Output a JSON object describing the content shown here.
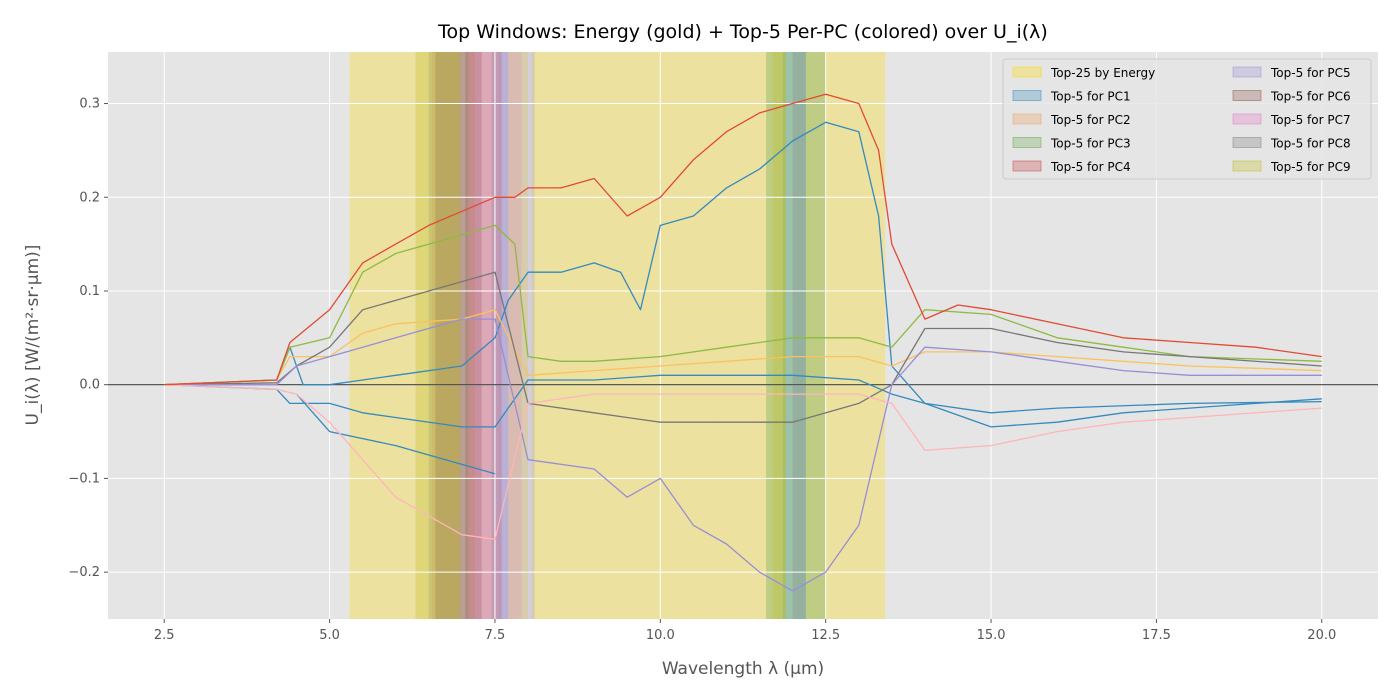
{
  "chart_data": {
    "type": "line",
    "title": "Top Windows: Energy (gold) + Top-5 Per-PC (colored) over U_i(λ)",
    "xlabel": "Wavelength λ (µm)",
    "ylabel": "U_i(λ) [W/(m²·sr·µm)]",
    "xlim": [
      1.65,
      20.85
    ],
    "ylim": [
      -0.25,
      0.355
    ],
    "xticks": [
      2.5,
      5.0,
      7.5,
      10.0,
      12.5,
      15.0,
      17.5,
      20.0
    ],
    "xtick_labels": [
      "2.5",
      "5.0",
      "7.5",
      "10.0",
      "12.5",
      "15.0",
      "17.5",
      "20.0"
    ],
    "yticks": [
      -0.2,
      -0.1,
      0.0,
      0.1,
      0.2,
      0.3
    ],
    "ytick_labels": [
      "−0.2",
      "−0.1",
      "0.0",
      "0.1",
      "0.2",
      "0.3"
    ],
    "grid": true,
    "legend_position": "top-right",
    "zero_line": 0,
    "legend": [
      {
        "label": "Top-25 by Energy",
        "color": "#ffd700"
      },
      {
        "label": "Top-5 for PC1",
        "color": "#348abd"
      },
      {
        "label": "Top-5 for PC2",
        "color": "#e8a060"
      },
      {
        "label": "Top-5 for PC3",
        "color": "#6aa84f"
      },
      {
        "label": "Top-5 for PC4",
        "color": "#c8424a"
      },
      {
        "label": "Top-5 for PC5",
        "color": "#988ed5"
      },
      {
        "label": "Top-5 for PC6",
        "color": "#8c564b"
      },
      {
        "label": "Top-5 for PC7",
        "color": "#e377c2"
      },
      {
        "label": "Top-5 for PC8",
        "color": "#7f7f7f"
      },
      {
        "label": "Top-5 for PC9",
        "color": "#bcbd22"
      }
    ],
    "windows": [
      {
        "group": "Top-25 by Energy",
        "color": "#ffd700",
        "opacity": 0.3,
        "ranges": [
          [
            5.3,
            5.6
          ],
          [
            5.6,
            5.9
          ],
          [
            5.9,
            6.15
          ],
          [
            6.15,
            6.4
          ],
          [
            6.4,
            6.55
          ],
          [
            6.55,
            6.75
          ],
          [
            6.75,
            7.0
          ],
          [
            7.7,
            8.0
          ],
          [
            8.05,
            8.3
          ],
          [
            8.3,
            8.5
          ],
          [
            8.5,
            8.75
          ],
          [
            8.75,
            9.0
          ],
          [
            9.0,
            9.25
          ],
          [
            9.25,
            9.5
          ],
          [
            9.5,
            9.75
          ],
          [
            9.75,
            10.0
          ],
          [
            10.0,
            10.3
          ],
          [
            10.3,
            10.6
          ],
          [
            10.6,
            10.9
          ],
          [
            10.9,
            11.2
          ],
          [
            11.2,
            11.5
          ],
          [
            11.5,
            11.9
          ],
          [
            12.2,
            12.6
          ],
          [
            12.6,
            13.1
          ],
          [
            13.1,
            13.4
          ]
        ]
      },
      {
        "group": "Top-5 for PC1",
        "color": "#348abd",
        "opacity": 0.25,
        "ranges": [
          [
            7.45,
            7.6
          ],
          [
            7.6,
            7.7
          ],
          [
            11.85,
            12.0
          ],
          [
            12.0,
            12.1
          ],
          [
            12.1,
            12.2
          ]
        ]
      },
      {
        "group": "Top-5 for PC2",
        "color": "#e8a060",
        "opacity": 0.25,
        "ranges": [
          [
            6.55,
            6.7
          ],
          [
            6.7,
            6.85
          ],
          [
            6.85,
            7.0
          ],
          [
            7.0,
            7.1
          ],
          [
            7.1,
            7.2
          ]
        ]
      },
      {
        "group": "Top-5 for PC3",
        "color": "#6aa84f",
        "opacity": 0.35,
        "ranges": [
          [
            11.6,
            11.85
          ],
          [
            11.85,
            12.0
          ],
          [
            12.0,
            12.15
          ],
          [
            12.15,
            12.3
          ],
          [
            12.3,
            12.5
          ]
        ]
      },
      {
        "group": "Top-5 for PC4",
        "color": "#c8424a",
        "opacity": 0.3,
        "ranges": [
          [
            7.05,
            7.2
          ],
          [
            7.2,
            7.3
          ],
          [
            7.3,
            7.4
          ],
          [
            7.4,
            7.5
          ],
          [
            7.5,
            7.6
          ]
        ]
      },
      {
        "group": "Top-5 for PC5",
        "color": "#988ed5",
        "opacity": 0.25,
        "ranges": [
          [
            7.55,
            7.7
          ],
          [
            7.7,
            7.8
          ],
          [
            7.8,
            7.9
          ],
          [
            7.9,
            8.0
          ],
          [
            8.0,
            8.1
          ]
        ]
      },
      {
        "group": "Top-5 for PC6",
        "color": "#8c564b",
        "opacity": 0.3,
        "ranges": [
          [
            6.6,
            6.75
          ],
          [
            6.75,
            6.9
          ],
          [
            6.9,
            7.05
          ],
          [
            7.05,
            7.15
          ],
          [
            7.15,
            7.3
          ]
        ]
      },
      {
        "group": "Top-5 for PC7",
        "color": "#e377c2",
        "opacity": 0.2,
        "ranges": [
          [
            7.15,
            7.3
          ],
          [
            7.3,
            7.45
          ],
          [
            7.45,
            7.6
          ],
          [
            7.6,
            7.75
          ],
          [
            7.75,
            7.9
          ]
        ]
      },
      {
        "group": "Top-5 for PC8",
        "color": "#7f7f7f",
        "opacity": 0.25,
        "ranges": [
          [
            6.5,
            6.7
          ],
          [
            6.7,
            6.85
          ],
          [
            6.85,
            7.0
          ],
          [
            7.0,
            7.1
          ],
          [
            12.0,
            12.2
          ]
        ]
      },
      {
        "group": "Top-5 for PC9",
        "color": "#bcbd22",
        "opacity": 0.3,
        "ranges": [
          [
            6.3,
            6.5
          ],
          [
            6.5,
            6.65
          ],
          [
            6.65,
            6.8
          ],
          [
            6.8,
            6.95
          ],
          [
            11.7,
            11.9
          ]
        ]
      }
    ],
    "series": [
      {
        "color": "#348abd",
        "points": [
          [
            2.5,
            0.0
          ],
          [
            4.2,
            0.005
          ],
          [
            4.4,
            0.04
          ],
          [
            4.6,
            0.0
          ],
          [
            5.0,
            0.0
          ],
          [
            6.0,
            0.01
          ],
          [
            7.0,
            0.02
          ],
          [
            7.5,
            0.05
          ],
          [
            7.7,
            0.09
          ],
          [
            8.0,
            0.12
          ],
          [
            8.5,
            0.12
          ],
          [
            9.0,
            0.13
          ],
          [
            9.4,
            0.12
          ],
          [
            9.7,
            0.08
          ],
          [
            10.0,
            0.17
          ],
          [
            10.5,
            0.18
          ],
          [
            11.0,
            0.21
          ],
          [
            11.5,
            0.23
          ],
          [
            12.0,
            0.26
          ],
          [
            12.5,
            0.28
          ],
          [
            13.0,
            0.27
          ],
          [
            13.3,
            0.18
          ],
          [
            13.5,
            0.02
          ],
          [
            14.0,
            -0.02
          ],
          [
            15.0,
            -0.045
          ],
          [
            16.0,
            -0.04
          ],
          [
            17.0,
            -0.03
          ],
          [
            18.0,
            -0.025
          ],
          [
            19.0,
            -0.02
          ],
          [
            20.0,
            -0.015
          ]
        ]
      },
      {
        "color": "#348abd",
        "points": [
          [
            2.5,
            0.0
          ],
          [
            4.2,
            -0.005
          ],
          [
            4.4,
            -0.02
          ],
          [
            5.0,
            -0.02
          ],
          [
            5.5,
            -0.03
          ],
          [
            6.0,
            -0.035
          ],
          [
            7.0,
            -0.045
          ],
          [
            7.5,
            -0.045
          ],
          [
            8.0,
            0.005
          ],
          [
            9.0,
            0.005
          ],
          [
            10.0,
            0.01
          ],
          [
            11.0,
            0.01
          ],
          [
            12.0,
            0.01
          ],
          [
            13.0,
            0.005
          ],
          [
            13.5,
            -0.01
          ],
          [
            14.0,
            -0.02
          ],
          [
            15.0,
            -0.03
          ],
          [
            16.0,
            -0.025
          ],
          [
            18.0,
            -0.02
          ],
          [
            20.0,
            -0.018
          ]
        ]
      },
      {
        "color": "#348abd",
        "points": [
          [
            4.5,
            -0.01
          ],
          [
            5.0,
            -0.05
          ],
          [
            6.0,
            -0.065
          ],
          [
            7.0,
            -0.085
          ],
          [
            7.5,
            -0.095
          ]
        ]
      },
      {
        "color": "#fbc15e",
        "points": [
          [
            2.5,
            0.0
          ],
          [
            4.2,
            0.005
          ],
          [
            4.4,
            0.03
          ],
          [
            5.0,
            0.03
          ],
          [
            5.5,
            0.055
          ],
          [
            6.0,
            0.065
          ],
          [
            7.0,
            0.07
          ],
          [
            7.5,
            0.08
          ],
          [
            8.0,
            0.01
          ],
          [
            9.0,
            0.015
          ],
          [
            10.0,
            0.02
          ],
          [
            11.0,
            0.025
          ],
          [
            12.0,
            0.03
          ],
          [
            13.0,
            0.03
          ],
          [
            13.5,
            0.02
          ],
          [
            14.0,
            0.035
          ],
          [
            15.0,
            0.035
          ],
          [
            16.0,
            0.03
          ],
          [
            17.0,
            0.025
          ],
          [
            18.0,
            0.02
          ],
          [
            20.0,
            0.015
          ]
        ]
      },
      {
        "color": "#8eba42",
        "points": [
          [
            2.5,
            0.0
          ],
          [
            4.2,
            0.005
          ],
          [
            4.4,
            0.04
          ],
          [
            5.0,
            0.05
          ],
          [
            5.5,
            0.12
          ],
          [
            6.0,
            0.14
          ],
          [
            6.5,
            0.15
          ],
          [
            7.0,
            0.16
          ],
          [
            7.5,
            0.17
          ],
          [
            7.8,
            0.15
          ],
          [
            8.0,
            0.03
          ],
          [
            8.5,
            0.025
          ],
          [
            9.0,
            0.025
          ],
          [
            10.0,
            0.03
          ],
          [
            11.0,
            0.04
          ],
          [
            12.0,
            0.05
          ],
          [
            13.0,
            0.05
          ],
          [
            13.5,
            0.04
          ],
          [
            14.0,
            0.08
          ],
          [
            15.0,
            0.075
          ],
          [
            16.0,
            0.05
          ],
          [
            17.0,
            0.04
          ],
          [
            18.0,
            0.03
          ],
          [
            20.0,
            0.025
          ]
        ]
      },
      {
        "color": "#777777",
        "points": [
          [
            2.5,
            0.0
          ],
          [
            4.2,
            0.002
          ],
          [
            4.5,
            0.02
          ],
          [
            5.0,
            0.04
          ],
          [
            5.5,
            0.08
          ],
          [
            6.0,
            0.09
          ],
          [
            7.0,
            0.11
          ],
          [
            7.5,
            0.12
          ],
          [
            8.0,
            -0.02
          ],
          [
            9.0,
            -0.03
          ],
          [
            10.0,
            -0.04
          ],
          [
            11.0,
            -0.04
          ],
          [
            12.0,
            -0.04
          ],
          [
            13.0,
            -0.02
          ],
          [
            13.5,
            0.0
          ],
          [
            14.0,
            0.06
          ],
          [
            15.0,
            0.06
          ],
          [
            16.0,
            0.045
          ],
          [
            17.0,
            0.035
          ],
          [
            18.0,
            0.03
          ],
          [
            20.0,
            0.02
          ]
        ]
      },
      {
        "color": "#988ed5",
        "points": [
          [
            2.5,
            0.0
          ],
          [
            4.2,
            0.0
          ],
          [
            4.5,
            0.02
          ],
          [
            5.0,
            0.03
          ],
          [
            5.5,
            0.04
          ],
          [
            6.0,
            0.05
          ],
          [
            7.0,
            0.07
          ],
          [
            7.5,
            0.07
          ],
          [
            8.0,
            -0.08
          ],
          [
            9.0,
            -0.09
          ],
          [
            9.5,
            -0.12
          ],
          [
            10.0,
            -0.1
          ],
          [
            10.5,
            -0.15
          ],
          [
            11.0,
            -0.17
          ],
          [
            11.5,
            -0.2
          ],
          [
            12.0,
            -0.22
          ],
          [
            12.5,
            -0.2
          ],
          [
            13.0,
            -0.15
          ],
          [
            13.5,
            0.0
          ],
          [
            14.0,
            0.04
          ],
          [
            15.0,
            0.035
          ],
          [
            16.0,
            0.025
          ],
          [
            17.0,
            0.015
          ],
          [
            18.0,
            0.01
          ],
          [
            20.0,
            0.01
          ]
        ]
      },
      {
        "color": "#ffb5b8",
        "points": [
          [
            2.5,
            0.0
          ],
          [
            4.2,
            -0.005
          ],
          [
            4.5,
            -0.01
          ],
          [
            5.0,
            -0.04
          ],
          [
            5.5,
            -0.08
          ],
          [
            6.0,
            -0.12
          ],
          [
            6.5,
            -0.14
          ],
          [
            7.0,
            -0.16
          ],
          [
            7.5,
            -0.165
          ],
          [
            8.0,
            -0.02
          ],
          [
            9.0,
            -0.01
          ],
          [
            10.0,
            -0.01
          ],
          [
            11.0,
            -0.01
          ],
          [
            12.0,
            -0.01
          ],
          [
            13.0,
            -0.01
          ],
          [
            13.5,
            -0.02
          ],
          [
            14.0,
            -0.07
          ],
          [
            15.0,
            -0.065
          ],
          [
            16.0,
            -0.05
          ],
          [
            17.0,
            -0.04
          ],
          [
            18.0,
            -0.035
          ],
          [
            20.0,
            -0.025
          ]
        ]
      },
      {
        "color": "#e24a33",
        "points": [
          [
            2.5,
            0.0
          ],
          [
            4.2,
            0.005
          ],
          [
            4.4,
            0.045
          ],
          [
            5.0,
            0.08
          ],
          [
            5.5,
            0.13
          ],
          [
            6.0,
            0.15
          ],
          [
            6.5,
            0.17
          ],
          [
            7.0,
            0.185
          ],
          [
            7.5,
            0.2
          ],
          [
            7.8,
            0.2
          ],
          [
            8.0,
            0.21
          ],
          [
            8.5,
            0.21
          ],
          [
            9.0,
            0.22
          ],
          [
            9.5,
            0.18
          ],
          [
            10.0,
            0.2
          ],
          [
            10.5,
            0.24
          ],
          [
            11.0,
            0.27
          ],
          [
            11.5,
            0.29
          ],
          [
            12.0,
            0.3
          ],
          [
            12.5,
            0.31
          ],
          [
            13.0,
            0.3
          ],
          [
            13.3,
            0.25
          ],
          [
            13.5,
            0.15
          ],
          [
            14.0,
            0.07
          ],
          [
            14.5,
            0.085
          ],
          [
            15.0,
            0.08
          ],
          [
            16.0,
            0.065
          ],
          [
            17.0,
            0.05
          ],
          [
            18.0,
            0.045
          ],
          [
            19.0,
            0.04
          ],
          [
            20.0,
            0.03
          ]
        ]
      }
    ]
  }
}
